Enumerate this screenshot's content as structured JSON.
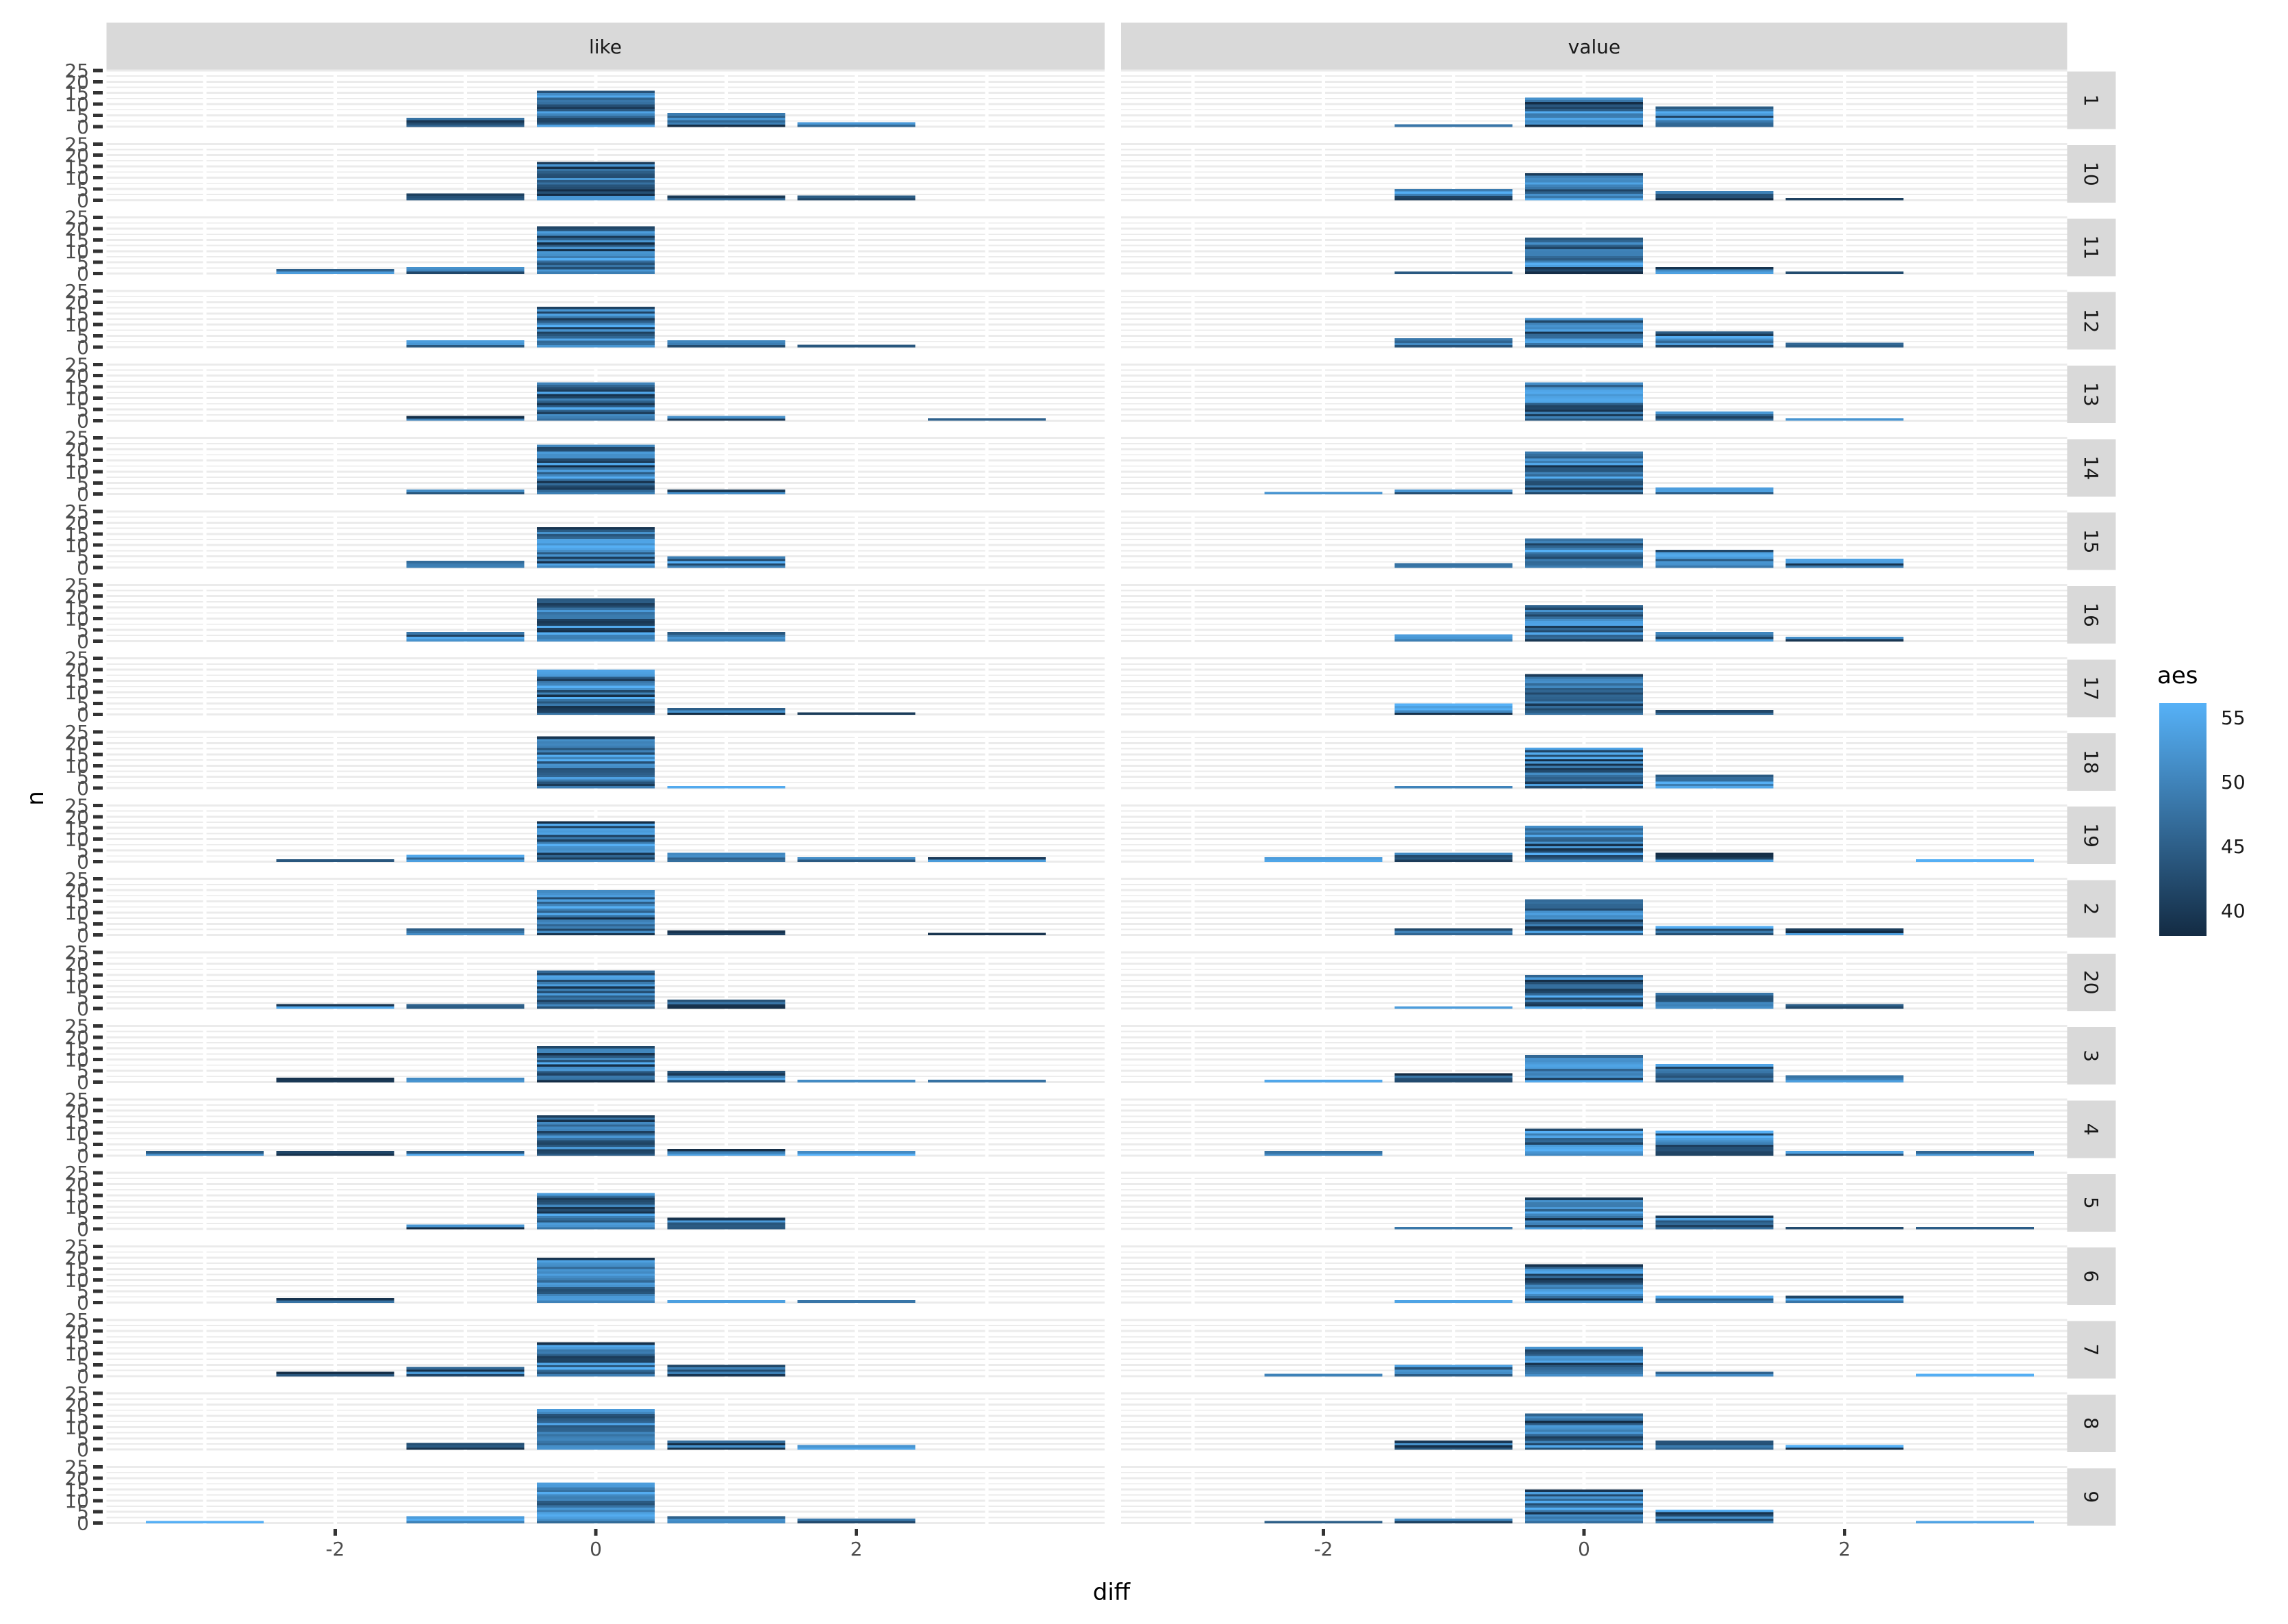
{
  "chart_data": {
    "type": "bar",
    "subtype": "faceted stacked unit histogram (each bar built of 1-count slices colored by continuous aes)",
    "title": "",
    "xlabel": "diff",
    "ylabel": "n",
    "facet_columns": [
      "like",
      "value"
    ],
    "facet_rows": [
      "1",
      "10",
      "11",
      "12",
      "13",
      "14",
      "15",
      "16",
      "17",
      "18",
      "19",
      "2",
      "20",
      "3",
      "4",
      "5",
      "6",
      "7",
      "8",
      "9"
    ],
    "x_ticks": [
      -2,
      0,
      2
    ],
    "x_tick_labels": [
      "-2",
      "0",
      "2"
    ],
    "y_ticks": [
      0,
      5,
      10,
      15,
      20,
      25
    ],
    "y_tick_labels": [
      "0",
      "5",
      "10",
      "15",
      "20",
      "25"
    ],
    "ylim": [
      0,
      25
    ],
    "binwidth": 1,
    "grid": true,
    "legend": {
      "title": "aes",
      "position": "right",
      "ticks": [
        "55",
        "50",
        "45",
        "40"
      ],
      "tick_values": [
        55,
        50,
        45,
        40
      ],
      "domain": [
        38,
        56.1
      ],
      "color_low": "#132B43",
      "color_high": "#56B1F7"
    },
    "histograms": {
      "like": {
        "1": [
          [
            -1,
            4
          ],
          [
            0,
            16
          ],
          [
            1,
            6
          ],
          [
            2,
            2
          ]
        ],
        "10": [
          [
            -1,
            3
          ],
          [
            0,
            17
          ],
          [
            1,
            2
          ],
          [
            2,
            2
          ]
        ],
        "11": [
          [
            -2,
            2
          ],
          [
            -1,
            3
          ],
          [
            0,
            21
          ]
        ],
        "12": [
          [
            -1,
            3
          ],
          [
            0,
            18
          ],
          [
            1,
            3
          ],
          [
            2,
            1
          ]
        ],
        "13": [
          [
            -1,
            2
          ],
          [
            0,
            17
          ],
          [
            1,
            2
          ],
          [
            3,
            1
          ]
        ],
        "14": [
          [
            -1,
            2
          ],
          [
            0,
            22
          ],
          [
            1,
            2
          ]
        ],
        "15": [
          [
            -1,
            3
          ],
          [
            0,
            18
          ],
          [
            1,
            5
          ]
        ],
        "16": [
          [
            -1,
            4
          ],
          [
            0,
            19
          ],
          [
            1,
            4
          ]
        ],
        "17": [
          [
            0,
            20
          ],
          [
            1,
            3
          ],
          [
            2,
            1
          ]
        ],
        "18": [
          [
            0,
            23
          ],
          [
            1,
            1
          ]
        ],
        "19": [
          [
            -2,
            1
          ],
          [
            -1,
            3
          ],
          [
            0,
            18
          ],
          [
            1,
            4
          ],
          [
            2,
            2
          ],
          [
            3,
            2
          ]
        ],
        "2": [
          [
            -1,
            3
          ],
          [
            0,
            20
          ],
          [
            1,
            2
          ],
          [
            3,
            1
          ]
        ],
        "20": [
          [
            -2,
            2
          ],
          [
            -1,
            2
          ],
          [
            0,
            17
          ],
          [
            1,
            4
          ]
        ],
        "3": [
          [
            -2,
            2
          ],
          [
            -1,
            2
          ],
          [
            0,
            16
          ],
          [
            1,
            5
          ],
          [
            2,
            1
          ],
          [
            3,
            1
          ]
        ],
        "4": [
          [
            -3,
            2
          ],
          [
            -2,
            2
          ],
          [
            -1,
            2
          ],
          [
            0,
            18
          ],
          [
            1,
            3
          ],
          [
            2,
            2
          ]
        ],
        "5": [
          [
            -1,
            2
          ],
          [
            0,
            16
          ],
          [
            1,
            5
          ]
        ],
        "6": [
          [
            -2,
            2
          ],
          [
            0,
            20
          ],
          [
            1,
            1
          ],
          [
            2,
            1
          ]
        ],
        "7": [
          [
            -2,
            2
          ],
          [
            -1,
            4
          ],
          [
            0,
            15
          ],
          [
            1,
            5
          ]
        ],
        "8": [
          [
            -1,
            3
          ],
          [
            0,
            18
          ],
          [
            1,
            4
          ],
          [
            2,
            2
          ]
        ],
        "9": [
          [
            -3,
            1
          ],
          [
            -1,
            3
          ],
          [
            0,
            18
          ],
          [
            1,
            3
          ],
          [
            2,
            2
          ]
        ]
      },
      "value": {
        "1": [
          [
            -1,
            1
          ],
          [
            0,
            13
          ],
          [
            1,
            9
          ]
        ],
        "10": [
          [
            -1,
            5
          ],
          [
            0,
            12
          ],
          [
            1,
            4
          ],
          [
            2,
            1
          ]
        ],
        "11": [
          [
            -1,
            1
          ],
          [
            0,
            16
          ],
          [
            1,
            3
          ],
          [
            2,
            1
          ]
        ],
        "12": [
          [
            -1,
            4
          ],
          [
            0,
            13
          ],
          [
            1,
            7
          ],
          [
            2,
            2
          ]
        ],
        "13": [
          [
            0,
            17
          ],
          [
            1,
            4
          ],
          [
            2,
            1
          ]
        ],
        "14": [
          [
            -2,
            1
          ],
          [
            -1,
            2
          ],
          [
            0,
            19
          ],
          [
            1,
            3
          ]
        ],
        "15": [
          [
            -1,
            2
          ],
          [
            0,
            13
          ],
          [
            1,
            8
          ],
          [
            2,
            4
          ]
        ],
        "16": [
          [
            -1,
            3
          ],
          [
            0,
            16
          ],
          [
            1,
            4
          ],
          [
            2,
            2
          ]
        ],
        "17": [
          [
            -1,
            5
          ],
          [
            0,
            18
          ],
          [
            1,
            2
          ]
        ],
        "18": [
          [
            -1,
            1
          ],
          [
            0,
            18
          ],
          [
            1,
            6
          ]
        ],
        "19": [
          [
            -2,
            2
          ],
          [
            -1,
            4
          ],
          [
            0,
            16
          ],
          [
            1,
            4
          ],
          [
            3,
            1
          ]
        ],
        "2": [
          [
            -1,
            3
          ],
          [
            0,
            16
          ],
          [
            1,
            4
          ],
          [
            2,
            3
          ]
        ],
        "20": [
          [
            -1,
            1
          ],
          [
            0,
            15
          ],
          [
            1,
            7
          ],
          [
            2,
            2
          ]
        ],
        "3": [
          [
            -2,
            1
          ],
          [
            -1,
            4
          ],
          [
            0,
            12
          ],
          [
            1,
            8
          ],
          [
            2,
            3
          ]
        ],
        "4": [
          [
            -2,
            2
          ],
          [
            0,
            12
          ],
          [
            1,
            11
          ],
          [
            2,
            2
          ],
          [
            3,
            2
          ]
        ],
        "5": [
          [
            -1,
            1
          ],
          [
            0,
            14
          ],
          [
            1,
            6
          ],
          [
            2,
            1
          ],
          [
            3,
            1
          ]
        ],
        "6": [
          [
            -1,
            1
          ],
          [
            0,
            17
          ],
          [
            1,
            3
          ],
          [
            2,
            3
          ]
        ],
        "7": [
          [
            -2,
            1
          ],
          [
            -1,
            5
          ],
          [
            0,
            13
          ],
          [
            1,
            2
          ],
          [
            3,
            1
          ]
        ],
        "8": [
          [
            -1,
            4
          ],
          [
            0,
            16
          ],
          [
            1,
            4
          ],
          [
            2,
            2
          ]
        ],
        "9": [
          [
            -2,
            1
          ],
          [
            -1,
            2
          ],
          [
            0,
            15
          ],
          [
            1,
            6
          ],
          [
            3,
            1
          ]
        ]
      }
    }
  },
  "style": {
    "strip_fill": "#D9D9D9",
    "strip_text_color": "#1A1A1A",
    "grid_color": "#EBEBEB",
    "panel_bg": "#FFFFFF",
    "tick_color": "#333333",
    "axis_text_color": "#4D4D4D",
    "axis_title_color": "#000000"
  }
}
